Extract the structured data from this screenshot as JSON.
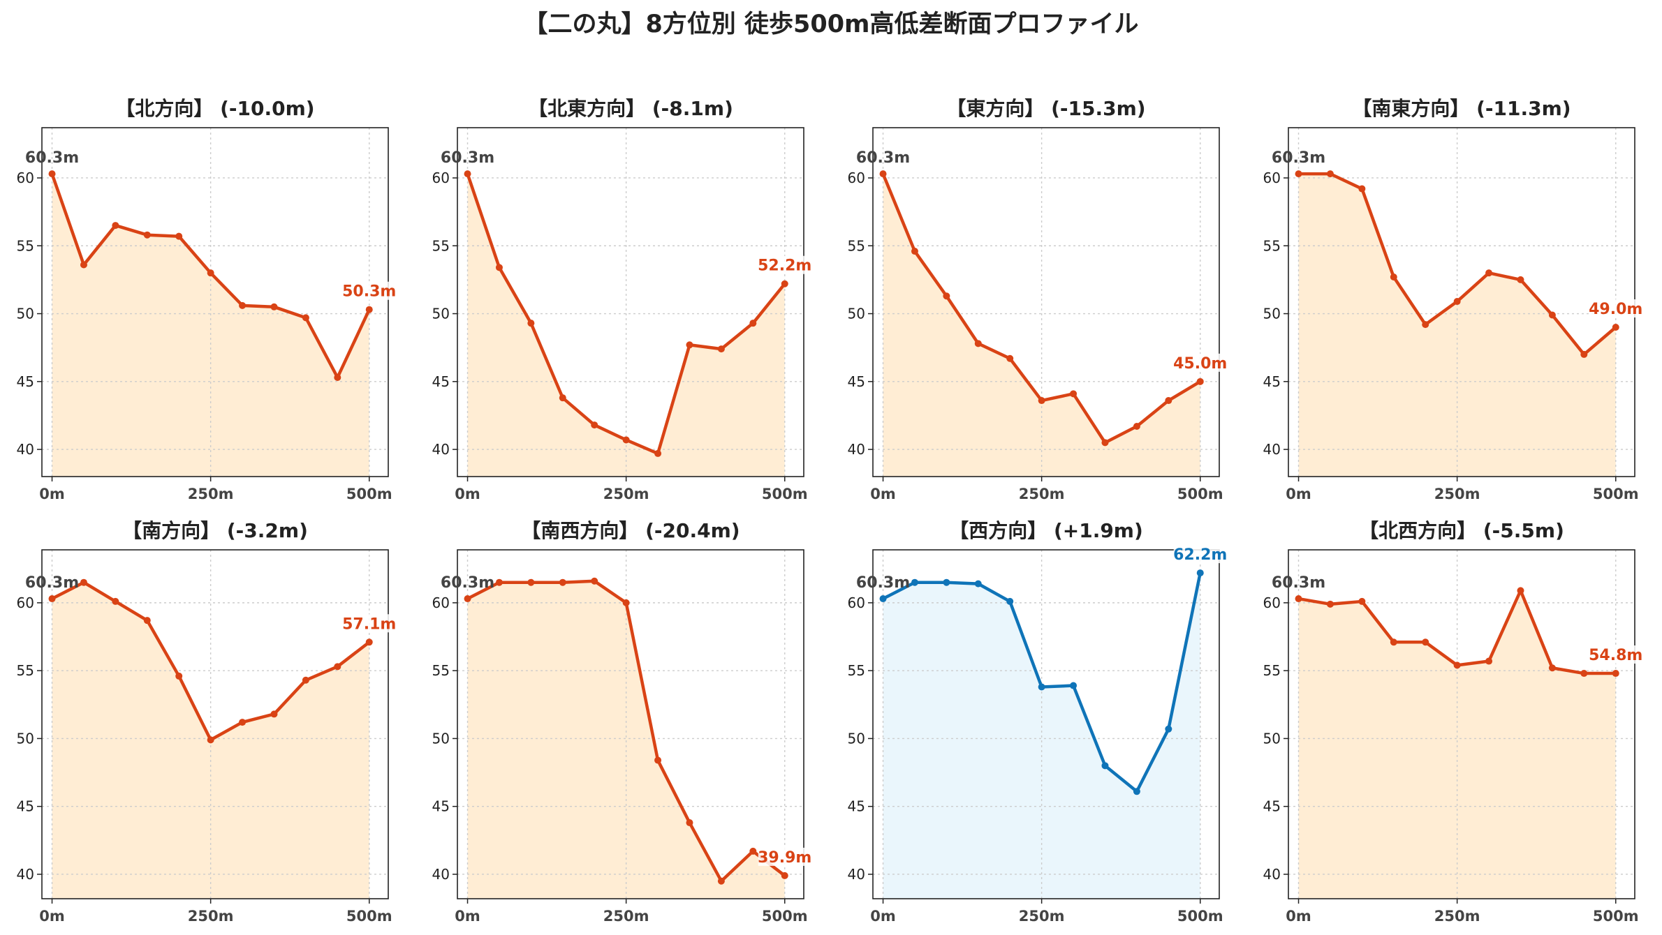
{
  "title": "【二の丸】8方位別 徒歩500m高低差断面プロファイル",
  "colors": {
    "down": "#d94315",
    "down_fill": "#ffedd4",
    "up": "#0f74b8",
    "up_fill": "#eaf6fc",
    "start_label": "#444444",
    "grid": "#cccccc",
    "axis": "#222222"
  },
  "chart_data": [
    {
      "type": "area",
      "title": "【北方向】 (-10.0m)",
      "x": [
        0,
        50,
        100,
        150,
        200,
        250,
        300,
        350,
        400,
        450,
        500
      ],
      "y": [
        60.3,
        53.6,
        56.5,
        55.8,
        55.7,
        53.0,
        50.6,
        50.5,
        49.7,
        45.3,
        50.3
      ],
      "xticks": [
        "0m",
        "250m",
        "500m"
      ],
      "yticks": [
        "40",
        "45",
        "50",
        "55",
        "60"
      ],
      "start_label": "60.3m",
      "end_label": "50.3m",
      "trend": "down",
      "xlim": [
        -16,
        530
      ],
      "ylim": [
        38.0,
        63.7
      ],
      "grid": true
    },
    {
      "type": "area",
      "title": "【北東方向】 (-8.1m)",
      "x": [
        0,
        50,
        100,
        150,
        200,
        250,
        300,
        350,
        400,
        450,
        500
      ],
      "y": [
        60.3,
        53.4,
        49.3,
        43.8,
        41.8,
        40.7,
        39.7,
        47.7,
        47.4,
        49.3,
        52.2
      ],
      "xticks": [
        "0m",
        "250m",
        "500m"
      ],
      "yticks": [
        "40",
        "45",
        "50",
        "55",
        "60"
      ],
      "start_label": "60.3m",
      "end_label": "52.2m",
      "trend": "down",
      "xlim": [
        -16,
        530
      ],
      "ylim": [
        38.0,
        63.7
      ],
      "grid": true
    },
    {
      "type": "area",
      "title": "【東方向】 (-15.3m)",
      "x": [
        0,
        50,
        100,
        150,
        200,
        250,
        300,
        350,
        400,
        450,
        500
      ],
      "y": [
        60.3,
        54.6,
        51.3,
        47.8,
        46.7,
        43.6,
        44.1,
        40.5,
        41.7,
        43.6,
        45.0
      ],
      "xticks": [
        "0m",
        "250m",
        "500m"
      ],
      "yticks": [
        "40",
        "45",
        "50",
        "55",
        "60"
      ],
      "start_label": "60.3m",
      "end_label": "45.0m",
      "trend": "down",
      "xlim": [
        -16,
        530
      ],
      "ylim": [
        38.0,
        63.7
      ],
      "grid": true
    },
    {
      "type": "area",
      "title": "【南東方向】 (-11.3m)",
      "x": [
        0,
        50,
        100,
        150,
        200,
        250,
        300,
        350,
        400,
        450,
        500
      ],
      "y": [
        60.3,
        60.3,
        59.2,
        52.7,
        49.2,
        50.9,
        53.0,
        52.5,
        49.9,
        47.0,
        49.0
      ],
      "xticks": [
        "0m",
        "250m",
        "500m"
      ],
      "yticks": [
        "40",
        "45",
        "50",
        "55",
        "60"
      ],
      "start_label": "60.3m",
      "end_label": "49.0m",
      "trend": "down",
      "xlim": [
        -16,
        530
      ],
      "ylim": [
        38.0,
        63.7
      ],
      "grid": true
    },
    {
      "type": "area",
      "title": "【南方向】 (-3.2m)",
      "x": [
        0,
        50,
        100,
        150,
        200,
        250,
        300,
        350,
        400,
        450,
        500
      ],
      "y": [
        60.3,
        61.5,
        60.1,
        58.7,
        54.6,
        49.9,
        51.2,
        51.8,
        54.3,
        55.3,
        57.1
      ],
      "xticks": [
        "0m",
        "250m",
        "500m"
      ],
      "yticks": [
        "40",
        "45",
        "50",
        "55",
        "60"
      ],
      "start_label": "60.3m",
      "end_label": "57.1m",
      "trend": "down",
      "xlim": [
        -16,
        530
      ],
      "ylim": [
        38.2,
        63.9
      ],
      "grid": true
    },
    {
      "type": "area",
      "title": "【南西方向】 (-20.4m)",
      "x": [
        0,
        50,
        100,
        150,
        200,
        250,
        300,
        350,
        400,
        450,
        500
      ],
      "y": [
        60.3,
        61.5,
        61.5,
        61.5,
        61.6,
        60.0,
        48.4,
        43.8,
        39.5,
        41.7,
        39.9
      ],
      "xticks": [
        "0m",
        "250m",
        "500m"
      ],
      "yticks": [
        "40",
        "45",
        "50",
        "55",
        "60"
      ],
      "start_label": "60.3m",
      "end_label": "39.9m",
      "trend": "down",
      "xlim": [
        -16,
        530
      ],
      "ylim": [
        38.2,
        63.9
      ],
      "grid": true
    },
    {
      "type": "area",
      "title": "【西方向】 (+1.9m)",
      "x": [
        0,
        50,
        100,
        150,
        200,
        250,
        300,
        350,
        400,
        450,
        500
      ],
      "y": [
        60.3,
        61.5,
        61.5,
        61.4,
        60.1,
        53.8,
        53.9,
        48.0,
        46.1,
        50.7,
        62.2
      ],
      "xticks": [
        "0m",
        "250m",
        "500m"
      ],
      "yticks": [
        "40",
        "45",
        "50",
        "55",
        "60"
      ],
      "start_label": "60.3m",
      "end_label": "62.2m",
      "trend": "up",
      "xlim": [
        -16,
        530
      ],
      "ylim": [
        38.2,
        63.9
      ],
      "grid": true
    },
    {
      "type": "area",
      "title": "【北西方向】 (-5.5m)",
      "x": [
        0,
        50,
        100,
        150,
        200,
        250,
        300,
        350,
        400,
        450,
        500
      ],
      "y": [
        60.3,
        59.9,
        60.1,
        57.1,
        57.1,
        55.4,
        55.7,
        60.9,
        55.2,
        54.8,
        54.8
      ],
      "xticks": [
        "0m",
        "250m",
        "500m"
      ],
      "yticks": [
        "40",
        "45",
        "50",
        "55",
        "60"
      ],
      "start_label": "60.3m",
      "end_label": "54.8m",
      "trend": "down",
      "xlim": [
        -16,
        530
      ],
      "ylim": [
        38.2,
        63.9
      ],
      "grid": true
    }
  ]
}
